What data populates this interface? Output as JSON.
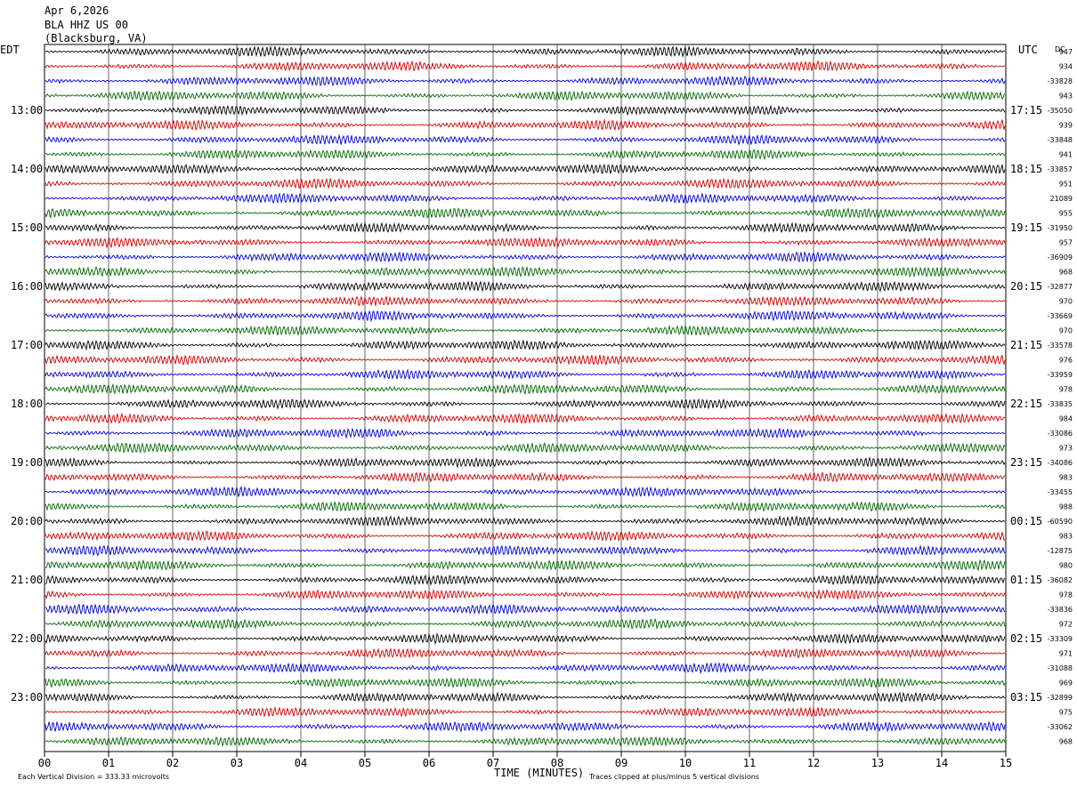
{
  "header": {
    "date": "Apr 6,2026",
    "station": "BLA HHZ US 00",
    "location": "(Blacksburg, VA)"
  },
  "labels": {
    "left_tz": "EDT",
    "right_tz": "UTC",
    "dc_header": "DC",
    "xlabel": "TIME (MINUTES)",
    "scale_note": "Each Vertical Division =  333.33 microvolts",
    "clip_note": "Traces clipped at plus/minus 5 vertical divisions"
  },
  "chart_data": {
    "type": "line",
    "title": "BLA HHZ US 00",
    "xlabel": "TIME (MINUTES)",
    "xlim": [
      0,
      15
    ],
    "x_ticks": [
      "00",
      "01",
      "02",
      "03",
      "04",
      "05",
      "06",
      "07",
      "08",
      "09",
      "10",
      "11",
      "12",
      "13",
      "14",
      "15"
    ],
    "trace_colors": [
      "#000000",
      "#cc0000",
      "#0000cc",
      "#006600"
    ],
    "trace_count": 48,
    "left_hour_labels": [
      "13:00",
      "14:00",
      "15:00",
      "16:00",
      "17:00",
      "18:00",
      "19:00",
      "20:00",
      "21:00",
      "22:00",
      "23:00"
    ],
    "right_hour_labels": [
      "17:15",
      "18:15",
      "19:15",
      "20:15",
      "21:15",
      "22:15",
      "23:15",
      "00:15",
      "01:15",
      "02:15",
      "03:15"
    ],
    "dc_values": [
      "947",
      "934",
      "-33828",
      "943",
      "-35050",
      "939",
      "-33848",
      "941",
      "-33857",
      "951",
      "21089",
      "955",
      "-31950",
      "957",
      "-36909",
      "968",
      "-32877",
      "970",
      "-33669",
      "970",
      "-33578",
      "976",
      "-33959",
      "978",
      "-33835",
      "984",
      "-33086",
      "973",
      "-34086",
      "983",
      "-33455",
      "988",
      "-60590",
      "983",
      "-12875",
      "980",
      "-36082",
      "978",
      "-33836",
      "972",
      "-33309",
      "971",
      "-31088",
      "969",
      "-32899",
      "975",
      "-33062",
      "968"
    ]
  }
}
